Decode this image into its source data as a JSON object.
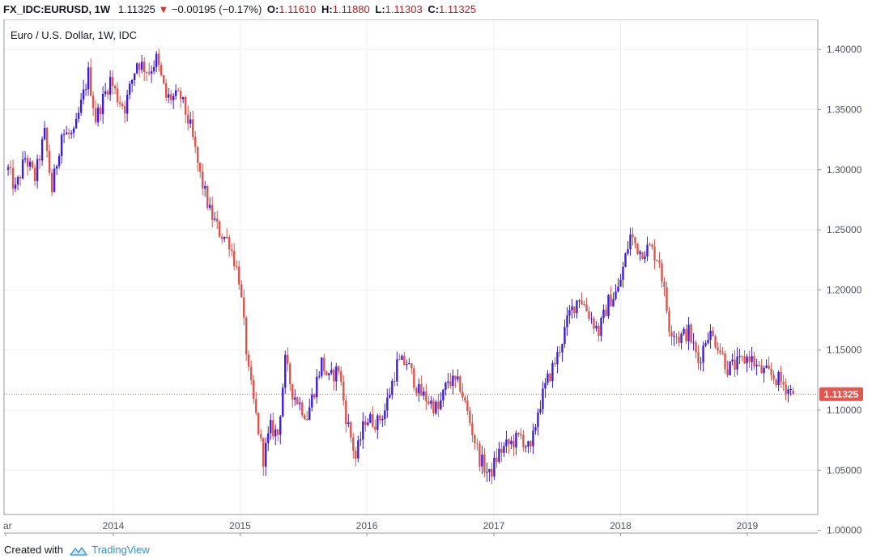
{
  "header": {
    "symbol": "FX_IDC:EURUSD, 1W",
    "last": "1.11325",
    "change": "−0.00195 (−0.17%)",
    "o_label": "O:",
    "o": "1.11610",
    "h_label": "H:",
    "h": "1.11880",
    "l_label": "L:",
    "l": "1.11303",
    "c_label": "C:",
    "c": "1.11325",
    "arrow": "▼"
  },
  "footer": {
    "created": "Created with",
    "brand": "TradingView",
    "logo_icon": "tradingview-logo-icon"
  },
  "colors": {
    "up": "#3d1cdf",
    "down": "#e0534b",
    "grid": "#eef0f3",
    "axis": "#50535e",
    "last_badge": "#e2574f"
  },
  "chart_data": {
    "type": "candlestick",
    "title": "Euro / U.S. Dollar, 1W, IDC",
    "ylim": [
      0.995,
      1.425
    ],
    "y_ticks": [
      "1.00000",
      "1.05000",
      "1.10000",
      "1.15000",
      "1.20000",
      "1.25000",
      "1.30000",
      "1.35000",
      "1.40000"
    ],
    "x_ticks": [
      "ar",
      "2014",
      "2015",
      "2016",
      "2017",
      "2018",
      "2019"
    ],
    "last_price": "1.11325",
    "grid": true,
    "weekly_close_path": [
      [
        "2013-03-04",
        1.3
      ],
      [
        "2013-03-25",
        1.283
      ],
      [
        "2013-04-22",
        1.31
      ],
      [
        "2013-05-20",
        1.293
      ],
      [
        "2013-06-17",
        1.33
      ],
      [
        "2013-07-08",
        1.283
      ],
      [
        "2013-08-05",
        1.33
      ],
      [
        "2013-09-09",
        1.328
      ],
      [
        "2013-10-21",
        1.38
      ],
      [
        "2013-11-11",
        1.342
      ],
      [
        "2013-12-23",
        1.375
      ],
      [
        "2014-01-13",
        1.36
      ],
      [
        "2014-02-03",
        1.352
      ],
      [
        "2014-03-10",
        1.39
      ],
      [
        "2014-04-14",
        1.382
      ],
      [
        "2014-05-05",
        1.392
      ],
      [
        "2014-06-02",
        1.36
      ],
      [
        "2014-07-14",
        1.36
      ],
      [
        "2014-08-11",
        1.335
      ],
      [
        "2014-09-08",
        1.295
      ],
      [
        "2014-10-06",
        1.265
      ],
      [
        "2014-11-03",
        1.248
      ],
      [
        "2014-12-01",
        1.24
      ],
      [
        "2014-12-29",
        1.21
      ],
      [
        "2015-01-26",
        1.13
      ],
      [
        "2015-03-09",
        1.06
      ],
      [
        "2015-03-30",
        1.085
      ],
      [
        "2015-04-20",
        1.08
      ],
      [
        "2015-05-11",
        1.14
      ],
      [
        "2015-06-01",
        1.115
      ],
      [
        "2015-07-13",
        1.095
      ],
      [
        "2015-08-24",
        1.14
      ],
      [
        "2015-09-14",
        1.125
      ],
      [
        "2015-10-12",
        1.135
      ],
      [
        "2015-11-02",
        1.095
      ],
      [
        "2015-11-30",
        1.06
      ],
      [
        "2015-12-28",
        1.093
      ],
      [
        "2016-02-01",
        1.09
      ],
      [
        "2016-02-22",
        1.1
      ],
      [
        "2016-03-28",
        1.138
      ],
      [
        "2016-04-25",
        1.14
      ],
      [
        "2016-05-30",
        1.115
      ],
      [
        "2016-06-20",
        1.11
      ],
      [
        "2016-07-25",
        1.1
      ],
      [
        "2016-08-22",
        1.125
      ],
      [
        "2016-09-26",
        1.12
      ],
      [
        "2016-10-24",
        1.09
      ],
      [
        "2016-11-21",
        1.06
      ],
      [
        "2016-12-19",
        1.045
      ],
      [
        "2017-01-16",
        1.065
      ],
      [
        "2017-02-06",
        1.07
      ],
      [
        "2017-03-20",
        1.078
      ],
      [
        "2017-04-17",
        1.065
      ],
      [
        "2017-05-08",
        1.1
      ],
      [
        "2017-06-05",
        1.125
      ],
      [
        "2017-07-03",
        1.145
      ],
      [
        "2017-08-07",
        1.18
      ],
      [
        "2017-09-04",
        1.195
      ],
      [
        "2017-10-02",
        1.18
      ],
      [
        "2017-10-30",
        1.165
      ],
      [
        "2017-11-27",
        1.19
      ],
      [
        "2017-12-25",
        1.2
      ],
      [
        "2018-01-29",
        1.245
      ],
      [
        "2018-02-26",
        1.232
      ],
      [
        "2018-03-26",
        1.235
      ],
      [
        "2018-04-23",
        1.225
      ],
      [
        "2018-05-21",
        1.17
      ],
      [
        "2018-06-18",
        1.16
      ],
      [
        "2018-07-16",
        1.165
      ],
      [
        "2018-08-13",
        1.14
      ],
      [
        "2018-09-10",
        1.165
      ],
      [
        "2018-10-08",
        1.155
      ],
      [
        "2018-11-05",
        1.135
      ],
      [
        "2018-12-03",
        1.138
      ],
      [
        "2019-01-07",
        1.145
      ],
      [
        "2019-02-04",
        1.133
      ],
      [
        "2019-03-04",
        1.13
      ],
      [
        "2019-04-01",
        1.125
      ],
      [
        "2019-04-29",
        1.118
      ],
      [
        "2019-05-13",
        1.11325
      ]
    ]
  }
}
